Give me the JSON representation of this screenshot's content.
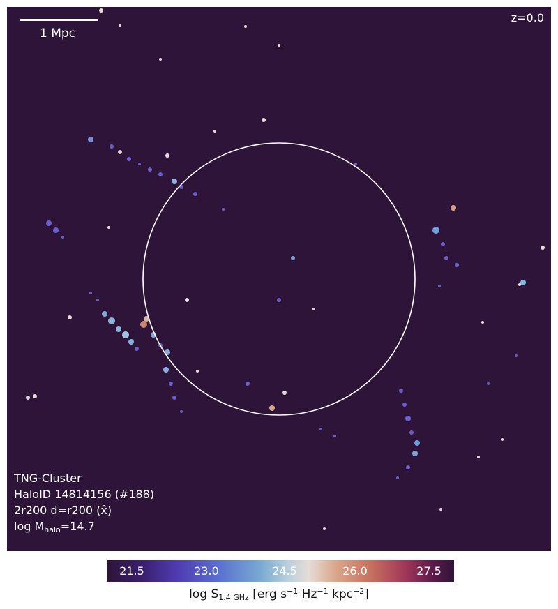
{
  "overlay": {
    "scalebar_label": "1 Mpc",
    "redshift": "z=0.0",
    "info": {
      "line1": "TNG-Cluster",
      "line2": "HaloID 14814156 (#188)",
      "line3": "2r200 d=r200 (x̂)",
      "line4_prefix": "log M",
      "line4_sub": "halo",
      "line4_suffix": "=14.7"
    }
  },
  "colorbar": {
    "ticks": [
      "21.5",
      "23.0",
      "24.5",
      "26.0",
      "27.5"
    ],
    "label_prefix": "log S",
    "label_sub": "1.4 GHz",
    "label_units_a": " [erg s",
    "label_exp_a": "−1",
    "label_units_b": " Hz",
    "label_exp_b": "−1",
    "label_units_c": " kpc",
    "label_exp_c": "−2",
    "label_units_d": "]"
  },
  "colors": {
    "background": "#2d1438",
    "circle": "#ffffff"
  }
}
